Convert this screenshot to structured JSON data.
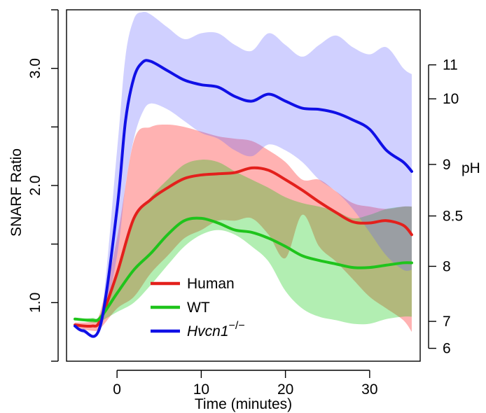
{
  "chart_data": {
    "type": "line",
    "xlabel": "Time (minutes)",
    "ylabel": "SNARF Ratio",
    "y2label": "pH",
    "xlim": [
      -6.0,
      36.0
    ],
    "ylim": [
      0.5,
      3.5
    ],
    "x_ticks": [
      0,
      10,
      20,
      30
    ],
    "y_ticks": [
      1.0,
      2.0,
      3.0
    ],
    "y_tick_labels": [
      "1.0",
      "2.0",
      "3.0"
    ],
    "y2_ticks": [
      {
        "label": "11",
        "ratio": 3.03
      },
      {
        "label": "10",
        "ratio": 2.74
      },
      {
        "label": "9",
        "ratio": 2.18
      },
      {
        "label": "8.5",
        "ratio": 1.74
      },
      {
        "label": "8",
        "ratio": 1.31
      },
      {
        "label": "7",
        "ratio": 0.84
      },
      {
        "label": "6",
        "ratio": 0.61
      }
    ],
    "grid": false,
    "legend_position": "bottom-center",
    "series": [
      {
        "name": "Human",
        "color": "#e3201c",
        "band_color": "#ff0000",
        "x": [
          -5,
          -3,
          -2,
          0,
          2,
          4,
          6,
          8,
          10,
          12,
          14,
          16,
          18,
          20,
          22,
          24,
          26,
          28,
          30,
          32,
          34,
          35
        ],
        "values": [
          0.81,
          0.8,
          0.85,
          1.25,
          1.72,
          1.88,
          1.98,
          2.06,
          2.09,
          2.1,
          2.11,
          2.15,
          2.13,
          2.05,
          1.96,
          1.86,
          1.77,
          1.69,
          1.68,
          1.7,
          1.66,
          1.58
        ],
        "upper": [
          0.83,
          0.84,
          0.92,
          1.55,
          2.38,
          2.5,
          2.52,
          2.5,
          2.46,
          2.42,
          2.4,
          2.38,
          2.3,
          2.2,
          2.05,
          2.05,
          1.95,
          1.85,
          1.82,
          1.8,
          1.82,
          1.82
        ],
        "lower": [
          0.79,
          0.76,
          0.78,
          0.95,
          1.05,
          1.25,
          1.4,
          1.55,
          1.62,
          1.7,
          1.7,
          1.72,
          1.58,
          1.38,
          1.75,
          1.48,
          1.35,
          1.2,
          1.05,
          0.95,
          0.85,
          0.75
        ]
      },
      {
        "name": "WT",
        "color": "#1fc41c",
        "band_color": "#00c800",
        "x": [
          -5,
          -3,
          -2,
          0,
          2,
          4,
          6,
          8,
          10,
          12,
          14,
          16,
          18,
          20,
          22,
          24,
          26,
          28,
          30,
          32,
          34,
          35
        ],
        "values": [
          0.86,
          0.85,
          0.87,
          1.08,
          1.28,
          1.42,
          1.58,
          1.7,
          1.72,
          1.68,
          1.62,
          1.6,
          1.55,
          1.48,
          1.4,
          1.36,
          1.33,
          1.3,
          1.3,
          1.32,
          1.34,
          1.34
        ],
        "upper": [
          0.86,
          0.87,
          0.9,
          1.25,
          1.7,
          1.9,
          2.05,
          2.18,
          2.22,
          2.2,
          2.12,
          2.05,
          1.98,
          1.9,
          1.85,
          1.82,
          1.78,
          1.72,
          1.75,
          1.8,
          1.82,
          1.82
        ],
        "lower": [
          0.86,
          0.83,
          0.84,
          0.92,
          1.0,
          1.15,
          1.32,
          1.48,
          1.58,
          1.62,
          1.58,
          1.48,
          1.35,
          1.1,
          0.95,
          0.88,
          0.85,
          0.82,
          0.82,
          0.86,
          0.88,
          0.88
        ]
      },
      {
        "name": "Hvcn1",
        "name_superscript": "−/−",
        "color": "#1010e6",
        "band_color": "#6464ff",
        "x": [
          -5,
          -4,
          -2,
          0,
          1,
          2,
          3,
          4,
          6,
          8,
          10,
          12,
          14,
          16,
          18,
          20,
          22,
          24,
          26,
          28,
          30,
          32,
          34,
          35
        ],
        "values": [
          0.8,
          0.76,
          0.8,
          1.8,
          2.55,
          2.92,
          3.05,
          3.06,
          2.98,
          2.9,
          2.86,
          2.84,
          2.76,
          2.72,
          2.78,
          2.72,
          2.66,
          2.65,
          2.62,
          2.56,
          2.48,
          2.3,
          2.2,
          2.12
        ],
        "upper": [
          0.8,
          0.78,
          0.84,
          2.3,
          3.1,
          3.42,
          3.48,
          3.46,
          3.35,
          3.25,
          3.3,
          3.3,
          3.2,
          3.15,
          3.3,
          3.2,
          3.1,
          3.2,
          3.28,
          3.18,
          3.12,
          3.18,
          3.0,
          2.95
        ],
        "lower": [
          0.8,
          0.74,
          0.76,
          1.4,
          2.0,
          2.4,
          2.62,
          2.7,
          2.65,
          2.55,
          2.45,
          2.4,
          2.3,
          2.25,
          2.35,
          2.3,
          2.2,
          2.05,
          1.95,
          1.8,
          1.6,
          1.4,
          1.28,
          1.28
        ]
      }
    ]
  }
}
